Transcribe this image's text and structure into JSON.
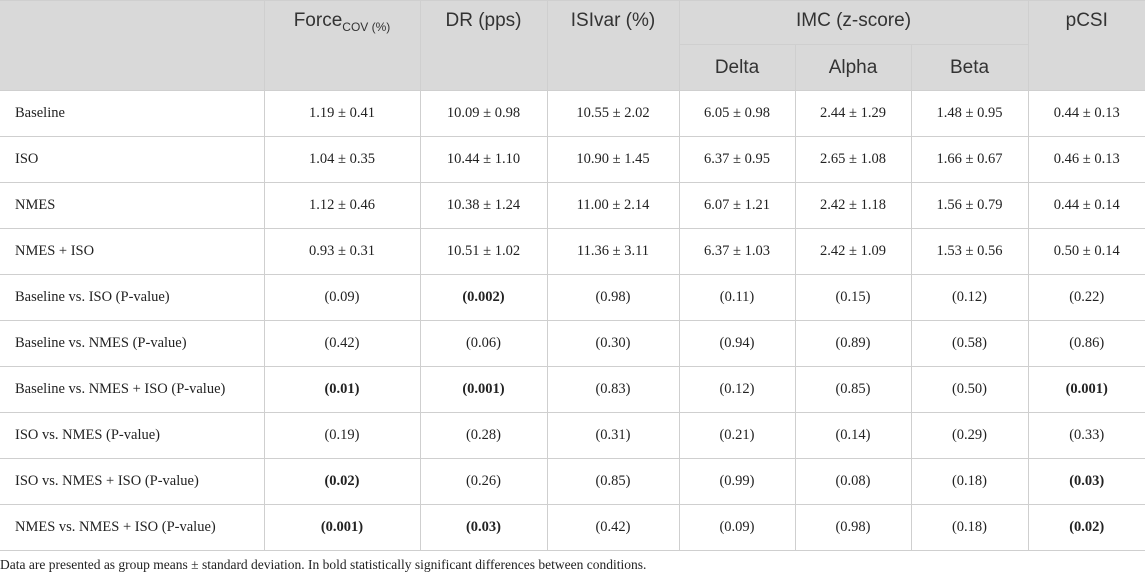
{
  "table": {
    "headers": {
      "force_main": "Force",
      "force_sub": "COV (%)",
      "dr": "DR (pps)",
      "isivar": "ISIvar (%)",
      "imc": "IMC (z-score)",
      "pcsi": "pCSI",
      "imc_sub": [
        "Delta",
        "Alpha",
        "Beta"
      ]
    },
    "rows": [
      {
        "label": "Baseline",
        "cells": [
          {
            "v": "1.19 ± 0.41",
            "b": false
          },
          {
            "v": "10.09 ± 0.98",
            "b": false
          },
          {
            "v": "10.55 ± 2.02",
            "b": false
          },
          {
            "v": "6.05 ± 0.98",
            "b": false
          },
          {
            "v": "2.44 ± 1.29",
            "b": false
          },
          {
            "v": "1.48 ± 0.95",
            "b": false
          },
          {
            "v": "0.44 ± 0.13",
            "b": false
          }
        ]
      },
      {
        "label": "ISO",
        "cells": [
          {
            "v": "1.04 ± 0.35",
            "b": false
          },
          {
            "v": "10.44 ± 1.10",
            "b": false
          },
          {
            "v": "10.90 ± 1.45",
            "b": false
          },
          {
            "v": "6.37 ± 0.95",
            "b": false
          },
          {
            "v": "2.65 ± 1.08",
            "b": false
          },
          {
            "v": "1.66 ± 0.67",
            "b": false
          },
          {
            "v": "0.46 ± 0.13",
            "b": false
          }
        ]
      },
      {
        "label": "NMES",
        "cells": [
          {
            "v": "1.12 ± 0.46",
            "b": false
          },
          {
            "v": "10.38 ± 1.24",
            "b": false
          },
          {
            "v": "11.00 ± 2.14",
            "b": false
          },
          {
            "v": "6.07 ± 1.21",
            "b": false
          },
          {
            "v": "2.42 ± 1.18",
            "b": false
          },
          {
            "v": "1.56 ± 0.79",
            "b": false
          },
          {
            "v": "0.44 ± 0.14",
            "b": false
          }
        ]
      },
      {
        "label": "NMES + ISO",
        "cells": [
          {
            "v": "0.93 ± 0.31",
            "b": false
          },
          {
            "v": "10.51 ± 1.02",
            "b": false
          },
          {
            "v": "11.36 ± 3.11",
            "b": false
          },
          {
            "v": "6.37 ± 1.03",
            "b": false
          },
          {
            "v": "2.42 ± 1.09",
            "b": false
          },
          {
            "v": "1.53 ± 0.56",
            "b": false
          },
          {
            "v": "0.50 ± 0.14",
            "b": false
          }
        ]
      },
      {
        "label": "Baseline vs. ISO (P-value)",
        "cells": [
          {
            "v": "(0.09)",
            "b": false
          },
          {
            "v": "(0.002)",
            "b": true
          },
          {
            "v": "(0.98)",
            "b": false
          },
          {
            "v": "(0.11)",
            "b": false
          },
          {
            "v": "(0.15)",
            "b": false
          },
          {
            "v": "(0.12)",
            "b": false
          },
          {
            "v": "(0.22)",
            "b": false
          }
        ]
      },
      {
        "label": "Baseline vs. NMES (P-value)",
        "cells": [
          {
            "v": "(0.42)",
            "b": false
          },
          {
            "v": "(0.06)",
            "b": false
          },
          {
            "v": "(0.30)",
            "b": false
          },
          {
            "v": "(0.94)",
            "b": false
          },
          {
            "v": "(0.89)",
            "b": false
          },
          {
            "v": "(0.58)",
            "b": false
          },
          {
            "v": "(0.86)",
            "b": false
          }
        ]
      },
      {
        "label": "Baseline vs. NMES + ISO (P-value)",
        "cells": [
          {
            "v": "(0.01)",
            "b": true
          },
          {
            "v": "(0.001)",
            "b": true
          },
          {
            "v": "(0.83)",
            "b": false
          },
          {
            "v": "(0.12)",
            "b": false
          },
          {
            "v": "(0.85)",
            "b": false
          },
          {
            "v": "(0.50)",
            "b": false
          },
          {
            "v": "(0.001)",
            "b": true
          }
        ]
      },
      {
        "label": "ISO vs. NMES (P-value)",
        "cells": [
          {
            "v": "(0.19)",
            "b": false
          },
          {
            "v": "(0.28)",
            "b": false
          },
          {
            "v": "(0.31)",
            "b": false
          },
          {
            "v": "(0.21)",
            "b": false
          },
          {
            "v": "(0.14)",
            "b": false
          },
          {
            "v": "(0.29)",
            "b": false
          },
          {
            "v": "(0.33)",
            "b": false
          }
        ]
      },
      {
        "label": "ISO vs. NMES + ISO (P-value)",
        "cells": [
          {
            "v": "(0.02)",
            "b": true
          },
          {
            "v": "(0.26)",
            "b": false
          },
          {
            "v": "(0.85)",
            "b": false
          },
          {
            "v": "(0.99)",
            "b": false
          },
          {
            "v": "(0.08)",
            "b": false
          },
          {
            "v": "(0.18)",
            "b": false
          },
          {
            "v": "(0.03)",
            "b": true
          }
        ]
      },
      {
        "label": "NMES vs. NMES + ISO (P-value)",
        "cells": [
          {
            "v": "(0.001)",
            "b": true
          },
          {
            "v": "(0.03)",
            "b": true
          },
          {
            "v": "(0.42)",
            "b": false
          },
          {
            "v": "(0.09)",
            "b": false
          },
          {
            "v": "(0.98)",
            "b": false
          },
          {
            "v": "(0.18)",
            "b": false
          },
          {
            "v": "(0.02)",
            "b": true
          }
        ]
      }
    ]
  },
  "footnote": "Data are presented as group means ± standard deviation. In bold statistically significant differences between conditions."
}
